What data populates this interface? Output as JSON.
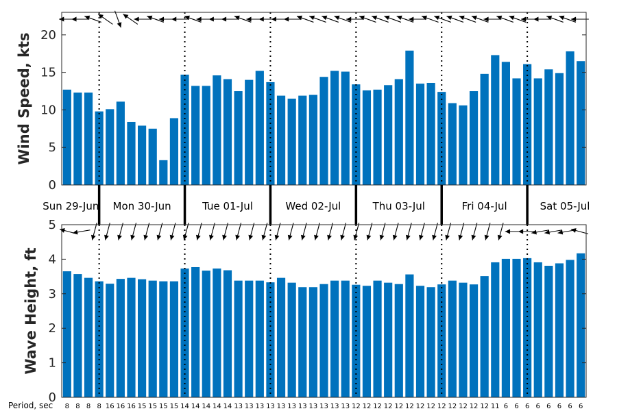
{
  "chart_data": [
    {
      "type": "bar",
      "ylabel": "Wind Speed, kts",
      "ylim": [
        0,
        23
      ],
      "yticks": [
        0,
        5,
        10,
        15,
        20
      ],
      "grid": false,
      "color": "#0072BD",
      "values": [
        12.7,
        12.3,
        12.3,
        9.8,
        10.1,
        11.1,
        8.4,
        7.9,
        7.5,
        3.3,
        8.9,
        14.7,
        13.2,
        13.2,
        14.6,
        14.1,
        12.5,
        14.0,
        15.2,
        13.7,
        11.9,
        11.5,
        11.9,
        12.0,
        14.4,
        15.2,
        15.1,
        13.4,
        12.6,
        12.7,
        13.3,
        14.1,
        17.9,
        13.5,
        13.6,
        12.4,
        10.9,
        10.6,
        12.5,
        14.8,
        17.3,
        16.4,
        14.2,
        16.1,
        14.2,
        15.4,
        14.9,
        17.8,
        16.5
      ],
      "direction_arrows_deg": [
        180,
        180,
        160,
        145,
        290,
        145,
        180,
        160,
        180,
        180,
        160,
        180,
        180,
        180,
        160,
        180,
        180,
        180,
        180,
        160,
        160,
        160,
        160,
        180,
        160,
        160,
        160,
        160,
        180,
        160,
        160,
        160,
        160,
        160,
        180,
        160,
        160,
        180,
        180,
        160,
        160,
        180
      ]
    },
    {
      "type": "bar",
      "ylabel": "Wave Height, ft",
      "ylim": [
        0,
        5
      ],
      "yticks": [
        0,
        1,
        2,
        3,
        4,
        5
      ],
      "grid": false,
      "color": "#0072BD",
      "values": [
        3.65,
        3.57,
        3.46,
        3.36,
        3.29,
        3.43,
        3.46,
        3.42,
        3.38,
        3.36,
        3.36,
        3.73,
        3.77,
        3.67,
        3.73,
        3.68,
        3.38,
        3.38,
        3.38,
        3.33,
        3.46,
        3.32,
        3.19,
        3.19,
        3.28,
        3.38,
        3.38,
        3.26,
        3.23,
        3.38,
        3.32,
        3.28,
        3.56,
        3.23,
        3.19,
        3.27,
        3.38,
        3.32,
        3.27,
        3.51,
        3.91,
        4.01,
        4.01,
        4.03,
        3.91,
        3.81,
        3.88,
        3.98,
        4.17
      ],
      "direction_arrows_deg": [
        165,
        190,
        255,
        255,
        255,
        255,
        255,
        255,
        255,
        255,
        255,
        255,
        255,
        255,
        255,
        255,
        255,
        255,
        255,
        255,
        255,
        255,
        255,
        255,
        255,
        255,
        255,
        255,
        255,
        255,
        255,
        255,
        255,
        255,
        180,
        180,
        190,
        190,
        190,
        165
      ]
    }
  ],
  "days": [
    "Sun 29-Jun",
    "Mon 30-Jun",
    "Tue 01-Jul",
    "Wed 02-Jul",
    "Thu 03-Jul",
    "Fri 04-Jul",
    "Sat 05-Jul"
  ],
  "period": {
    "title": "Period, sec",
    "values": [
      8,
      8,
      8,
      8,
      16,
      16,
      16,
      15,
      15,
      15,
      15,
      14,
      14,
      14,
      14,
      14,
      13,
      13,
      13,
      13,
      13,
      13,
      13,
      13,
      13,
      13,
      13,
      12,
      12,
      12,
      12,
      12,
      12,
      12,
      12,
      12,
      12,
      12,
      12,
      12,
      11,
      6,
      6,
      6,
      6,
      6,
      6,
      6,
      6
    ]
  }
}
